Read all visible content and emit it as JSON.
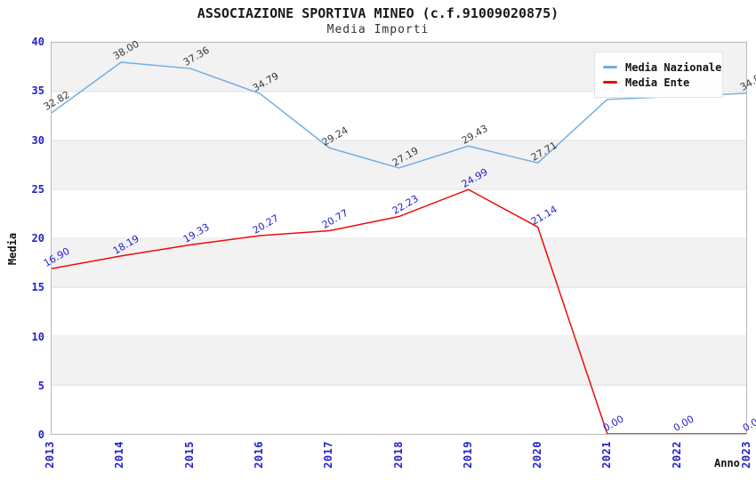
{
  "title": "ASSOCIAZIONE SPORTIVA MINEO (c.f.91009020875)",
  "subtitle": "Media Importi",
  "legend": {
    "items": [
      {
        "label": "Media Nazionale",
        "color": "#72ade4"
      },
      {
        "label": "Media Ente",
        "color": "#ee0a0a"
      }
    ]
  },
  "axes": {
    "y_title": "Media",
    "x_title": "Anno",
    "y_ticks": [
      0,
      5,
      10,
      15,
      20,
      25,
      30,
      35,
      40
    ],
    "x_ticks": [
      "2013",
      "2014",
      "2015",
      "2016",
      "2017",
      "2018",
      "2019",
      "2020",
      "2021",
      "2022",
      "2023"
    ],
    "tick_color": "#2222cc"
  },
  "chart_data": {
    "type": "line",
    "title": "Media Importi",
    "categories": [
      "2013",
      "2014",
      "2015",
      "2016",
      "2017",
      "2018",
      "2019",
      "2020",
      "2021",
      "2022",
      "2023"
    ],
    "series": [
      {
        "name": "Media Nazionale",
        "color": "#72ade4",
        "label_color": "#3a3a3a",
        "values": [
          32.82,
          38.0,
          37.36,
          34.79,
          29.24,
          27.19,
          29.43,
          27.71,
          34.2,
          34.5,
          34.83
        ]
      },
      {
        "name": "Media Ente",
        "color": "#ee0a0a",
        "label_color": "#2222cc",
        "values": [
          16.9,
          18.19,
          19.33,
          20.27,
          20.77,
          22.23,
          24.99,
          21.14,
          0.0,
          0.0,
          0.0
        ]
      }
    ],
    "xlabel": "Anno",
    "ylabel": "Media",
    "ylim": [
      0,
      40
    ],
    "grid": true,
    "legend_position": "top-right",
    "band_color": "#f2f2f2",
    "gridline_color": "#e2e2e2"
  }
}
